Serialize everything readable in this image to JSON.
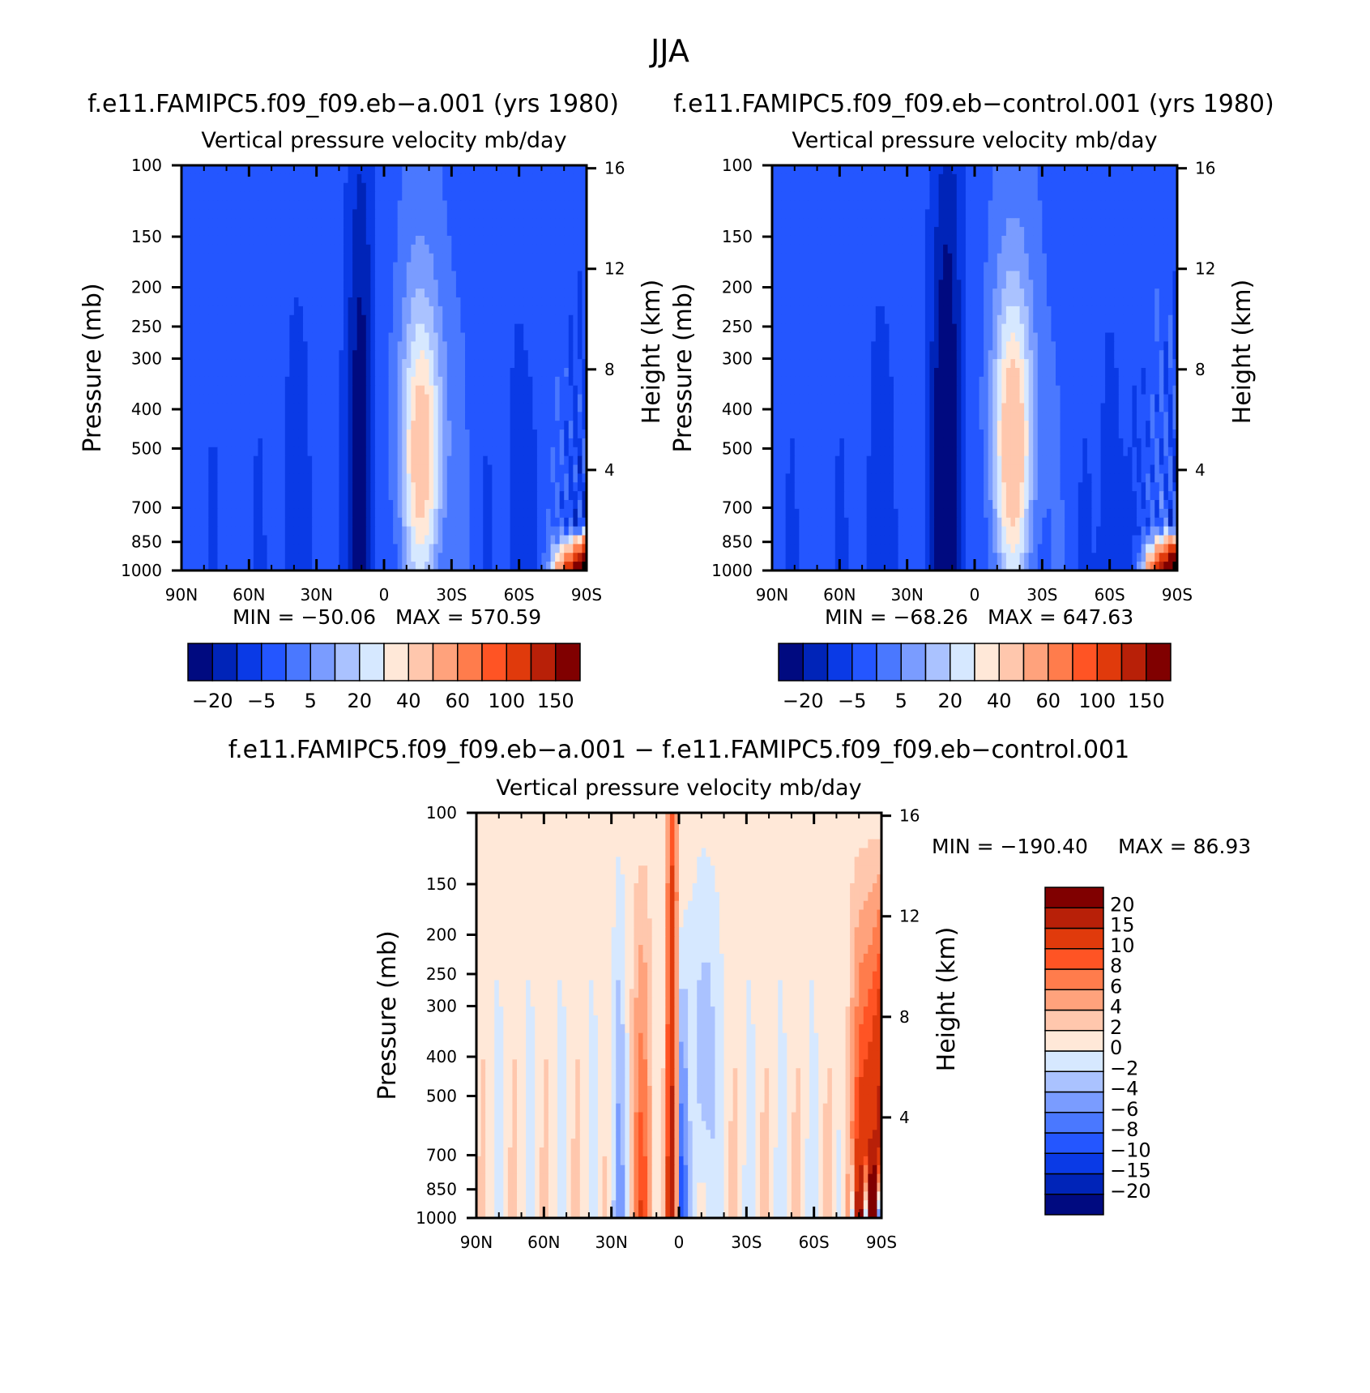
{
  "figure": {
    "main_title": "JJA",
    "colors": {
      "cmap_abs": [
        "#000a80",
        "#0024b8",
        "#0a3ae6",
        "#2456ff",
        "#4a78ff",
        "#7a9cff",
        "#aac2ff",
        "#d6e8ff",
        "#ffe8d8",
        "#ffc7ad",
        "#ffa27c",
        "#ff7c4c",
        "#ff5424",
        "#e03a0c",
        "#b82008",
        "#800000"
      ],
      "cmap_diff": [
        "#000a80",
        "#0024b8",
        "#0a3ae6",
        "#2456ff",
        "#4a78ff",
        "#7a9cff",
        "#aac2ff",
        "#d6e8ff",
        "#ffe8d8",
        "#ffc7ad",
        "#ffa27c",
        "#ff7c4c",
        "#ff5424",
        "#e03a0c",
        "#b82008",
        "#800000"
      ]
    }
  },
  "chart_data": [
    {
      "id": "panel_a",
      "type": "heatmap",
      "title": "f.e11.FAMIPC5.f09_f09.eb−a.001 (yrs 1980)",
      "subtitle": "Vertical pressure velocity   mb/day",
      "ylabel": "Pressure (mb)",
      "ylabel_right": "Height (km)",
      "x_ticks": [
        "90N",
        "60N",
        "30N",
        "0",
        "30S",
        "60S",
        "90S"
      ],
      "x_range": [
        90,
        -90
      ],
      "y_ticks": [
        100,
        150,
        200,
        250,
        300,
        400,
        500,
        700,
        850,
        1000
      ],
      "y_range": [
        100,
        1000
      ],
      "y_right_ticks": [
        16,
        12,
        8,
        4
      ],
      "min_label": "MIN  =  −50.06",
      "max_label": "MAX  =  570.59",
      "min": -50.06,
      "max": 570.59,
      "colorbar_labels": [
        "−20",
        "−5",
        "5",
        "20",
        "40",
        "60",
        "100",
        "150"
      ],
      "levels": [
        -20,
        -15,
        -10,
        -5,
        0,
        5,
        10,
        15,
        20,
        30,
        40,
        50,
        60,
        80,
        100,
        150
      ]
    },
    {
      "id": "panel_control",
      "type": "heatmap",
      "title": "f.e11.FAMIPC5.f09_f09.eb−control.001 (yrs 1980)",
      "subtitle": "Vertical pressure velocity   mb/day",
      "ylabel": "Pressure (mb)",
      "ylabel_right": "Height (km)",
      "x_ticks": [
        "90N",
        "60N",
        "30N",
        "0",
        "30S",
        "60S",
        "90S"
      ],
      "x_range": [
        90,
        -90
      ],
      "y_ticks": [
        100,
        150,
        200,
        250,
        300,
        400,
        500,
        700,
        850,
        1000
      ],
      "y_range": [
        100,
        1000
      ],
      "y_right_ticks": [
        16,
        12,
        8,
        4
      ],
      "min_label": "MIN  =  −68.26",
      "max_label": "MAX  =  647.63",
      "min": -68.26,
      "max": 647.63,
      "colorbar_labels": [
        "−20",
        "−5",
        "5",
        "20",
        "40",
        "60",
        "100",
        "150"
      ],
      "levels": [
        -20,
        -15,
        -10,
        -5,
        0,
        5,
        10,
        15,
        20,
        30,
        40,
        50,
        60,
        80,
        100,
        150
      ]
    },
    {
      "id": "panel_diff",
      "type": "heatmap",
      "title": "f.e11.FAMIPC5.f09_f09.eb−a.001  −  f.e11.FAMIPC5.f09_f09.eb−control.001",
      "subtitle": "Vertical pressure velocity   mb/day",
      "ylabel": "Pressure (mb)",
      "ylabel_right": "Height (km)",
      "x_ticks": [
        "90N",
        "60N",
        "30N",
        "0",
        "30S",
        "60S",
        "90S"
      ],
      "x_range": [
        90,
        -90
      ],
      "y_ticks": [
        100,
        150,
        200,
        250,
        300,
        400,
        500,
        700,
        850,
        1000
      ],
      "y_range": [
        100,
        1000
      ],
      "y_right_ticks": [
        16,
        12,
        8,
        4
      ],
      "min_label": "MIN  =  −190.40",
      "max_label": "MAX  =    86.93",
      "min": -190.4,
      "max": 86.93,
      "colorbar_labels": [
        "20",
        "15",
        "10",
        "8",
        "6",
        "4",
        "2",
        "0",
        "−2",
        "−4",
        "−6",
        "−8",
        "−10",
        "−15",
        "−20"
      ],
      "levels": [
        -20,
        -15,
        -10,
        -8,
        -6,
        -4,
        -2,
        0,
        2,
        4,
        6,
        8,
        10,
        15,
        20
      ]
    }
  ]
}
